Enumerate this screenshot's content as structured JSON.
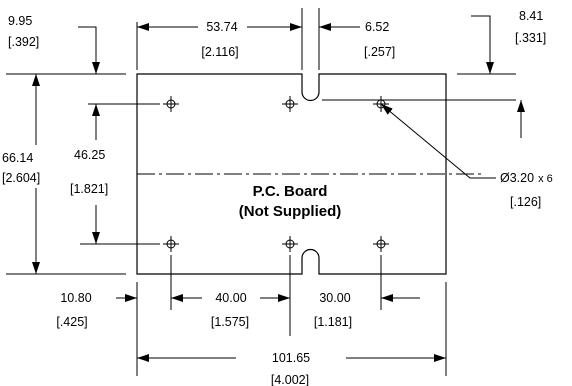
{
  "board": {
    "title_line1": "P.C. Board",
    "title_line2": "(Not Supplied)"
  },
  "dimensions": {
    "top_edge_to_upper_holes": {
      "mm": "9.95",
      "inch": "[.392]"
    },
    "left_edge_to_slot": {
      "mm": "53.74",
      "inch": "[2.116]"
    },
    "slot_width": {
      "mm": "6.52",
      "inch": "[.257]"
    },
    "slot_depth": {
      "mm": "8.41",
      "inch": "[.331]"
    },
    "board_height": {
      "mm": "66.14",
      "inch": "[2.604]"
    },
    "hole_row_spacing": {
      "mm": "46.25",
      "inch": "[1.821]"
    },
    "hole_diameter": {
      "mm": "Ø3.20",
      "count": "x 6",
      "inch": "[.126]"
    },
    "left_edge_to_hole_column": {
      "mm": "10.80",
      "inch": "[.425]"
    },
    "hole_spacing_left": {
      "mm": "40.00",
      "inch": "[1.575]"
    },
    "hole_spacing_right": {
      "mm": "30.00",
      "inch": "[1.181]"
    },
    "board_width": {
      "mm": "101.65",
      "inch": "[4.002]"
    }
  }
}
